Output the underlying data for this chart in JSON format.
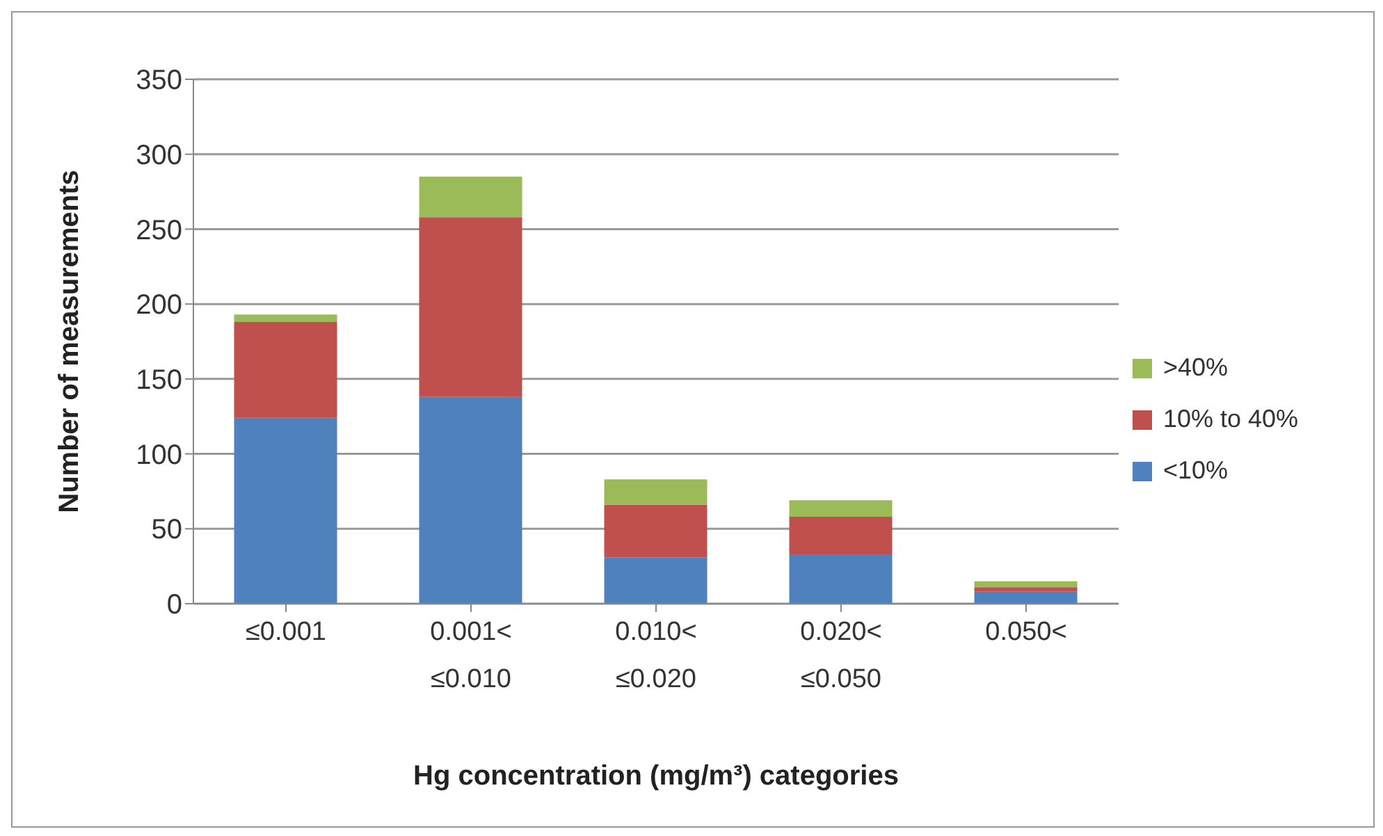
{
  "chart_data": {
    "type": "bar",
    "stacked": true,
    "xlabel": "Hg concentration (mg/m³) categories",
    "ylabel": "Number of measurements",
    "categories": [
      "≤0.001",
      "0.001<\n≤0.010",
      "0.010<\n≤0.020",
      "0.020<\n≤0.050",
      "0.050<"
    ],
    "series": [
      {
        "name": "<10%",
        "color": "#4f81bd",
        "values": [
          124,
          138,
          31,
          33,
          8
        ]
      },
      {
        "name": "10% to 40%",
        "color": "#c0504d",
        "values": [
          64,
          120,
          35,
          25,
          3
        ]
      },
      {
        "name": ">40%",
        "color": "#9bbb59",
        "values": [
          5,
          27,
          17,
          11,
          4
        ]
      }
    ],
    "ylim": [
      0,
      350
    ],
    "yticks": [
      0,
      50,
      100,
      150,
      200,
      250,
      300,
      350
    ],
    "grid": "y",
    "legend": "right"
  }
}
